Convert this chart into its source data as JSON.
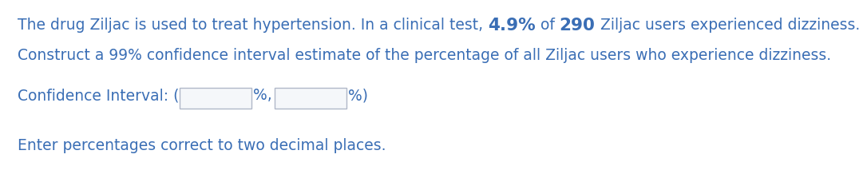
{
  "line1_parts": [
    {
      "text": "The drug Ziljac is used to treat hypertension. In a clinical test, ",
      "bold": false,
      "size": 13.5
    },
    {
      "text": "4.9%",
      "bold": true,
      "size": 15.5
    },
    {
      "text": " of ",
      "bold": false,
      "size": 13.5
    },
    {
      "text": "290",
      "bold": true,
      "size": 15.5
    },
    {
      "text": " Ziljac users experienced dizziness.",
      "bold": false,
      "size": 13.5
    }
  ],
  "line2": "Construct a 99% confidence interval estimate of the percentage of all Ziljac users who experience dizziness.",
  "line3_pre": "Confidence Interval: (",
  "line3_mid": "%,",
  "line3_post": "%)",
  "line4": "Enter percentages correct to two decimal places.",
  "text_color": "#3a6eb5",
  "bg_color": "#ffffff",
  "font_size": 13.5,
  "box_edge_color": "#b0b8c8",
  "box_face_color": "#f5f7fa"
}
